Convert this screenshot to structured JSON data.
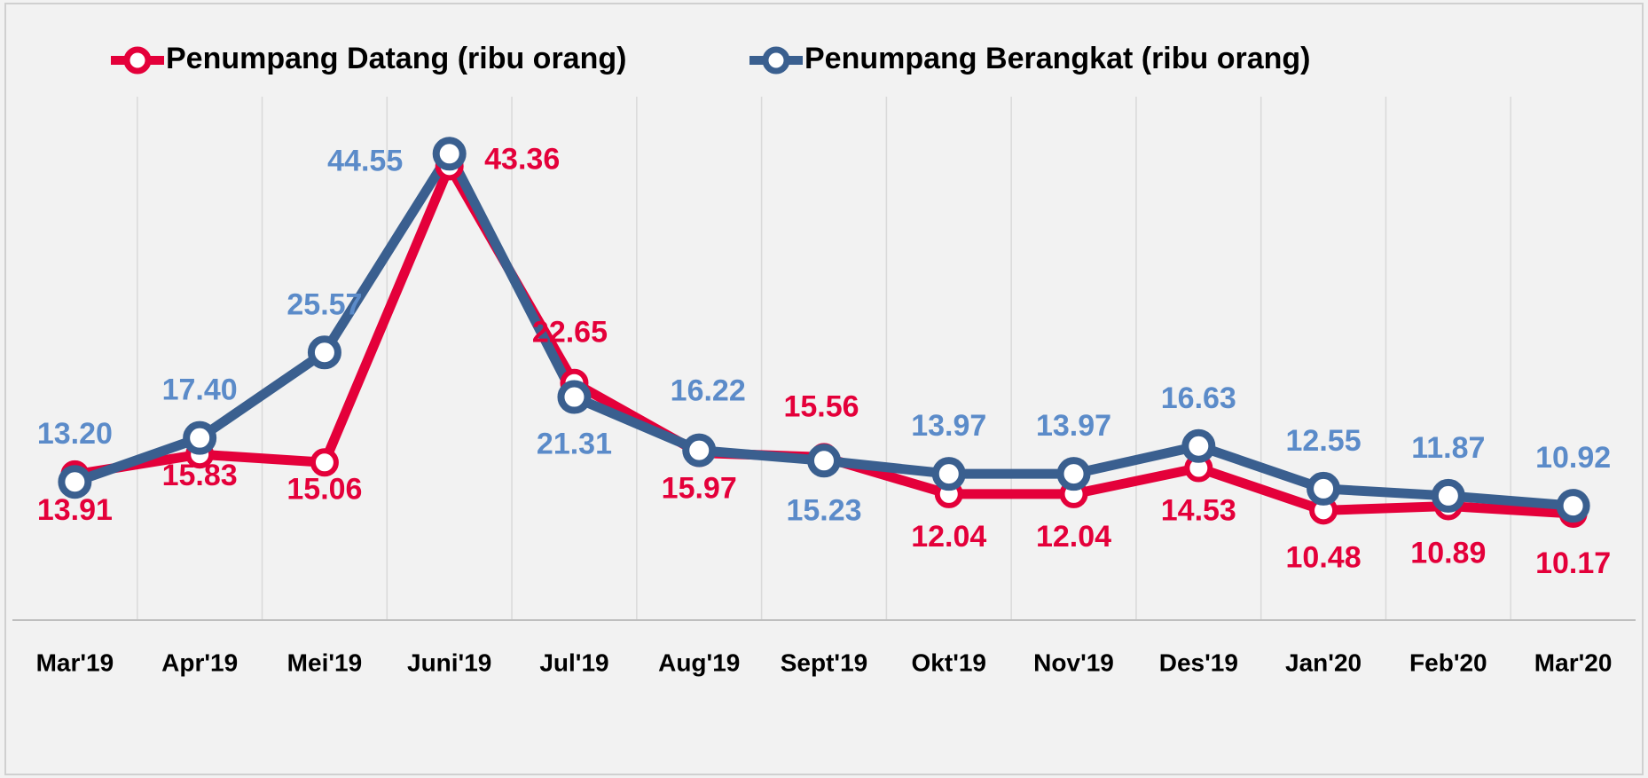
{
  "chart_data": {
    "type": "line",
    "categories": [
      "Mar'19",
      "Apr'19",
      "Mei'19",
      "Juni'19",
      "Jul'19",
      "Aug'19",
      "Sept'19",
      "Okt'19",
      "Nov'19",
      "Des'19",
      "Jan'20",
      "Feb'20",
      "Mar'20"
    ],
    "series": [
      {
        "name": "Penumpang Datang (ribu orang)",
        "color": "#e4003a",
        "label_color": "#e4003a",
        "values": [
          13.91,
          15.83,
          15.06,
          43.36,
          22.65,
          15.97,
          15.56,
          12.04,
          12.04,
          14.53,
          10.48,
          10.89,
          10.17
        ],
        "value_labels": [
          "13.91",
          "15.83",
          "15.06",
          "43.36",
          "22.65",
          "15.97",
          "15.56",
          "12.04",
          "12.04",
          "14.53",
          "10.48",
          "10.89",
          "10.17"
        ]
      },
      {
        "name": "Penumpang Berangkat (ribu orang)",
        "color": "#3a5f8f",
        "label_color": "#5b8bc9",
        "values": [
          13.2,
          17.4,
          25.57,
          44.55,
          21.31,
          16.22,
          15.23,
          13.97,
          13.97,
          16.63,
          12.55,
          11.87,
          10.92
        ],
        "value_labels": [
          "13.20",
          "17.40",
          "25.57",
          "44.55",
          "21.31",
          "16.22",
          "15.23",
          "13.97",
          "13.97",
          "16.63",
          "12.55",
          "11.87",
          "10.92"
        ]
      }
    ],
    "ylim": [
      0,
      50
    ],
    "grid": true
  }
}
